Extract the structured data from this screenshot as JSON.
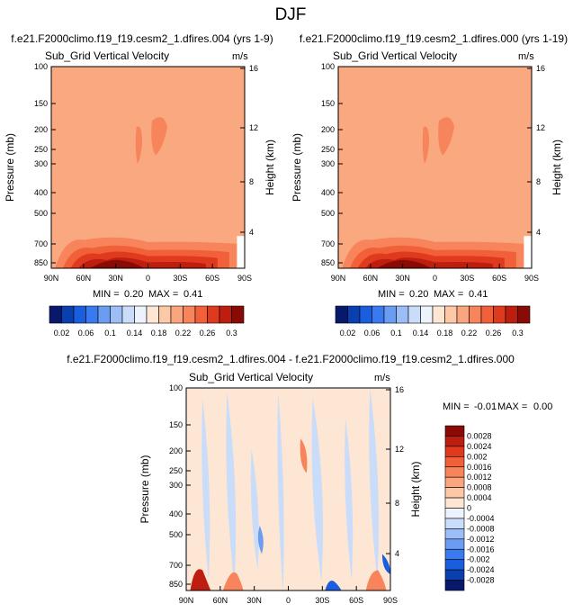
{
  "page_title": "DJF",
  "chart_data": [
    {
      "type": "heatmap",
      "panel": "top-left",
      "title": "f.e21.F2000climo.f19_f19.cesm2_1.dfires.004 (yrs 1-9)",
      "variable": "Sub_Grid Vertical Velocity",
      "units": "m/s",
      "xlabel": "",
      "ylabel": "Pressure (mb)",
      "y2label": "Height (km)",
      "x_ticks": [
        "90N",
        "60N",
        "30N",
        "0",
        "30S",
        "60S",
        "90S"
      ],
      "y_ticks": [
        "100",
        "150",
        "200",
        "250",
        "300",
        "400",
        "500",
        "700",
        "850"
      ],
      "y2_ticks": [
        "16",
        "12",
        "8",
        "4"
      ],
      "min_label": "MIN =",
      "min_value": "0.20",
      "max_label": "MAX =",
      "max_value": "0.41",
      "background_level": 0.18
    },
    {
      "type": "heatmap",
      "panel": "top-right",
      "title": "f.e21.F2000climo.f19_f19.cesm2_1.dfires.000 (yrs 1-19)",
      "variable": "Sub_Grid Vertical Velocity",
      "units": "m/s",
      "xlabel": "",
      "ylabel": "Pressure (mb)",
      "y2label": "Height (km)",
      "x_ticks": [
        "90N",
        "60N",
        "30N",
        "0",
        "30S",
        "60S",
        "90S"
      ],
      "y_ticks": [
        "100",
        "150",
        "200",
        "250",
        "300",
        "400",
        "500",
        "700",
        "850"
      ],
      "y2_ticks": [
        "16",
        "12",
        "8",
        "4"
      ],
      "min_label": "MIN =",
      "min_value": "0.20",
      "max_label": "MAX =",
      "max_value": "0.41",
      "background_level": 0.18
    },
    {
      "type": "heatmap",
      "panel": "bottom-difference",
      "title": "f.e21.F2000climo.f19_f19.cesm2_1.dfires.004 - f.e21.F2000climo.f19_f19.cesm2_1.dfires.000",
      "variable": "Sub_Grid Vertical Velocity",
      "units": "m/s",
      "xlabel": "",
      "ylabel": "Pressure (mb)",
      "y2label": "Height (km)",
      "x_ticks": [
        "90N",
        "60N",
        "30N",
        "0",
        "30S",
        "60S",
        "90S"
      ],
      "y_ticks": [
        "100",
        "150",
        "200",
        "250",
        "300",
        "400",
        "500",
        "700",
        "850"
      ],
      "y2_ticks": [
        "16",
        "12",
        "8",
        "4"
      ],
      "min_label": "MIN =",
      "min_value": "-0.01",
      "max_label": "MAX =",
      "max_value": "0.00",
      "background_level": 0.0002
    }
  ],
  "top_colorbar": {
    "labels": [
      "0.02",
      "0.06",
      "0.1",
      "0.14",
      "0.18",
      "0.22",
      "0.26",
      "0.3"
    ],
    "colors": [
      "#08196b",
      "#0a3fb0",
      "#1a5ee0",
      "#3a7af0",
      "#6a9cf2",
      "#9cbdf5",
      "#c9dcfa",
      "#ecf3fd",
      "#fde6d4",
      "#fcc8a6",
      "#fba57f",
      "#f7845a",
      "#f2603a",
      "#e03a1e",
      "#bd1e10",
      "#8a0a05"
    ]
  },
  "bottom_colorbar": {
    "labels": [
      "0.0028",
      "0.0024",
      "0.002",
      "0.0016",
      "0.0012",
      "0.0008",
      "0.0004",
      "0",
      "-0.0004",
      "-0.0008",
      "-0.0012",
      "-0.0016",
      "-0.002",
      "-0.0024",
      "-0.0028"
    ],
    "colors": [
      "#8a0a05",
      "#bd1e10",
      "#e03a1e",
      "#f2603a",
      "#f7845a",
      "#fba57f",
      "#fcc8a6",
      "#fde6d4",
      "#ecf3fd",
      "#c9dcfa",
      "#9cbdf5",
      "#6a9cf2",
      "#3a7af0",
      "#1a5ee0",
      "#0a3fb0",
      "#08196b"
    ]
  },
  "colors": {
    "bg_top": "#f9a87f",
    "bg_diff": "#fde6d4",
    "pos_mid": "#f7845a",
    "pos_dark": "#bd1e10",
    "neg_light": "#c9dcfa",
    "neg_mid": "#6a9cf2",
    "neg_dark": "#1a5ee0"
  }
}
